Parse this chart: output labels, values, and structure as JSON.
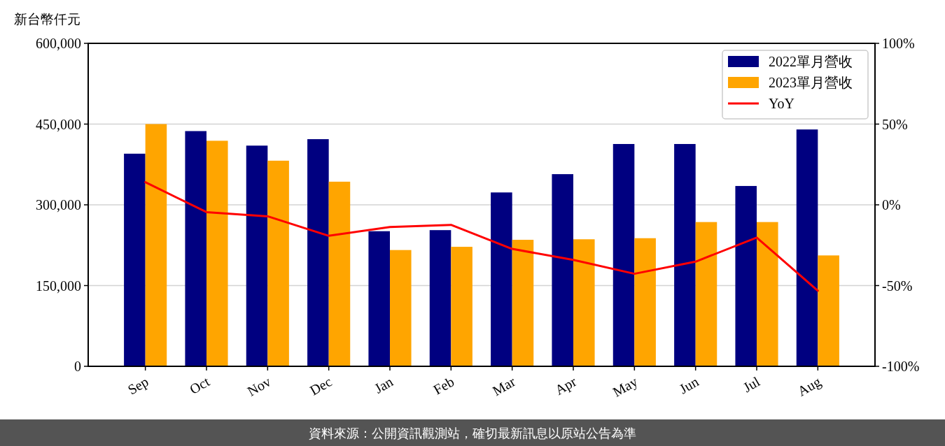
{
  "chart_data": {
    "type": "bar",
    "categories": [
      "Sep",
      "Oct",
      "Nov",
      "Dec",
      "Jan",
      "Feb",
      "Mar",
      "Apr",
      "May",
      "Jun",
      "Jul",
      "Aug"
    ],
    "series": [
      {
        "name": "2022單月營收",
        "color": "#000080",
        "values": [
          395000,
          437000,
          410000,
          422000,
          251000,
          253000,
          323000,
          357000,
          413000,
          413000,
          335000,
          440000
        ]
      },
      {
        "name": "2023單月營收",
        "color": "#ffa500",
        "values": [
          450000,
          419000,
          382000,
          343000,
          216000,
          222000,
          235000,
          236000,
          238000,
          268000,
          268000,
          206000
        ]
      },
      {
        "name": "YoY",
        "type": "line",
        "axis": "y2",
        "color": "#ff0000",
        "values": [
          14,
          -4.5,
          -7.1,
          -19.2,
          -13.7,
          -12.4,
          -27.3,
          -34.1,
          -42.7,
          -35.2,
          -20.3,
          -53.2
        ]
      }
    ],
    "ylabel": "新台幣仟元",
    "ylim": [
      0,
      600000
    ],
    "yticks": [
      0,
      {
        "value": 150000,
        "label": "150,000"
      },
      {
        "value": 300000,
        "label": "300,000"
      },
      {
        "value": 450000,
        "label": "450,000"
      },
      {
        "value": 600000,
        "label": "600,000"
      }
    ],
    "y2lim": [
      -100,
      100
    ],
    "y2ticks": [
      {
        "value": -100,
        "label": "-100%"
      },
      {
        "value": -50,
        "label": "-50%"
      },
      {
        "value": 0,
        "label": "0%"
      },
      {
        "value": 50,
        "label": "50%"
      },
      {
        "value": 100,
        "label": "100%"
      }
    ],
    "grid": "y",
    "legend": "top right",
    "annotations": [
      "資料來源：公開資訊觀測站，確切最新訊息以原站公告為準"
    ]
  }
}
